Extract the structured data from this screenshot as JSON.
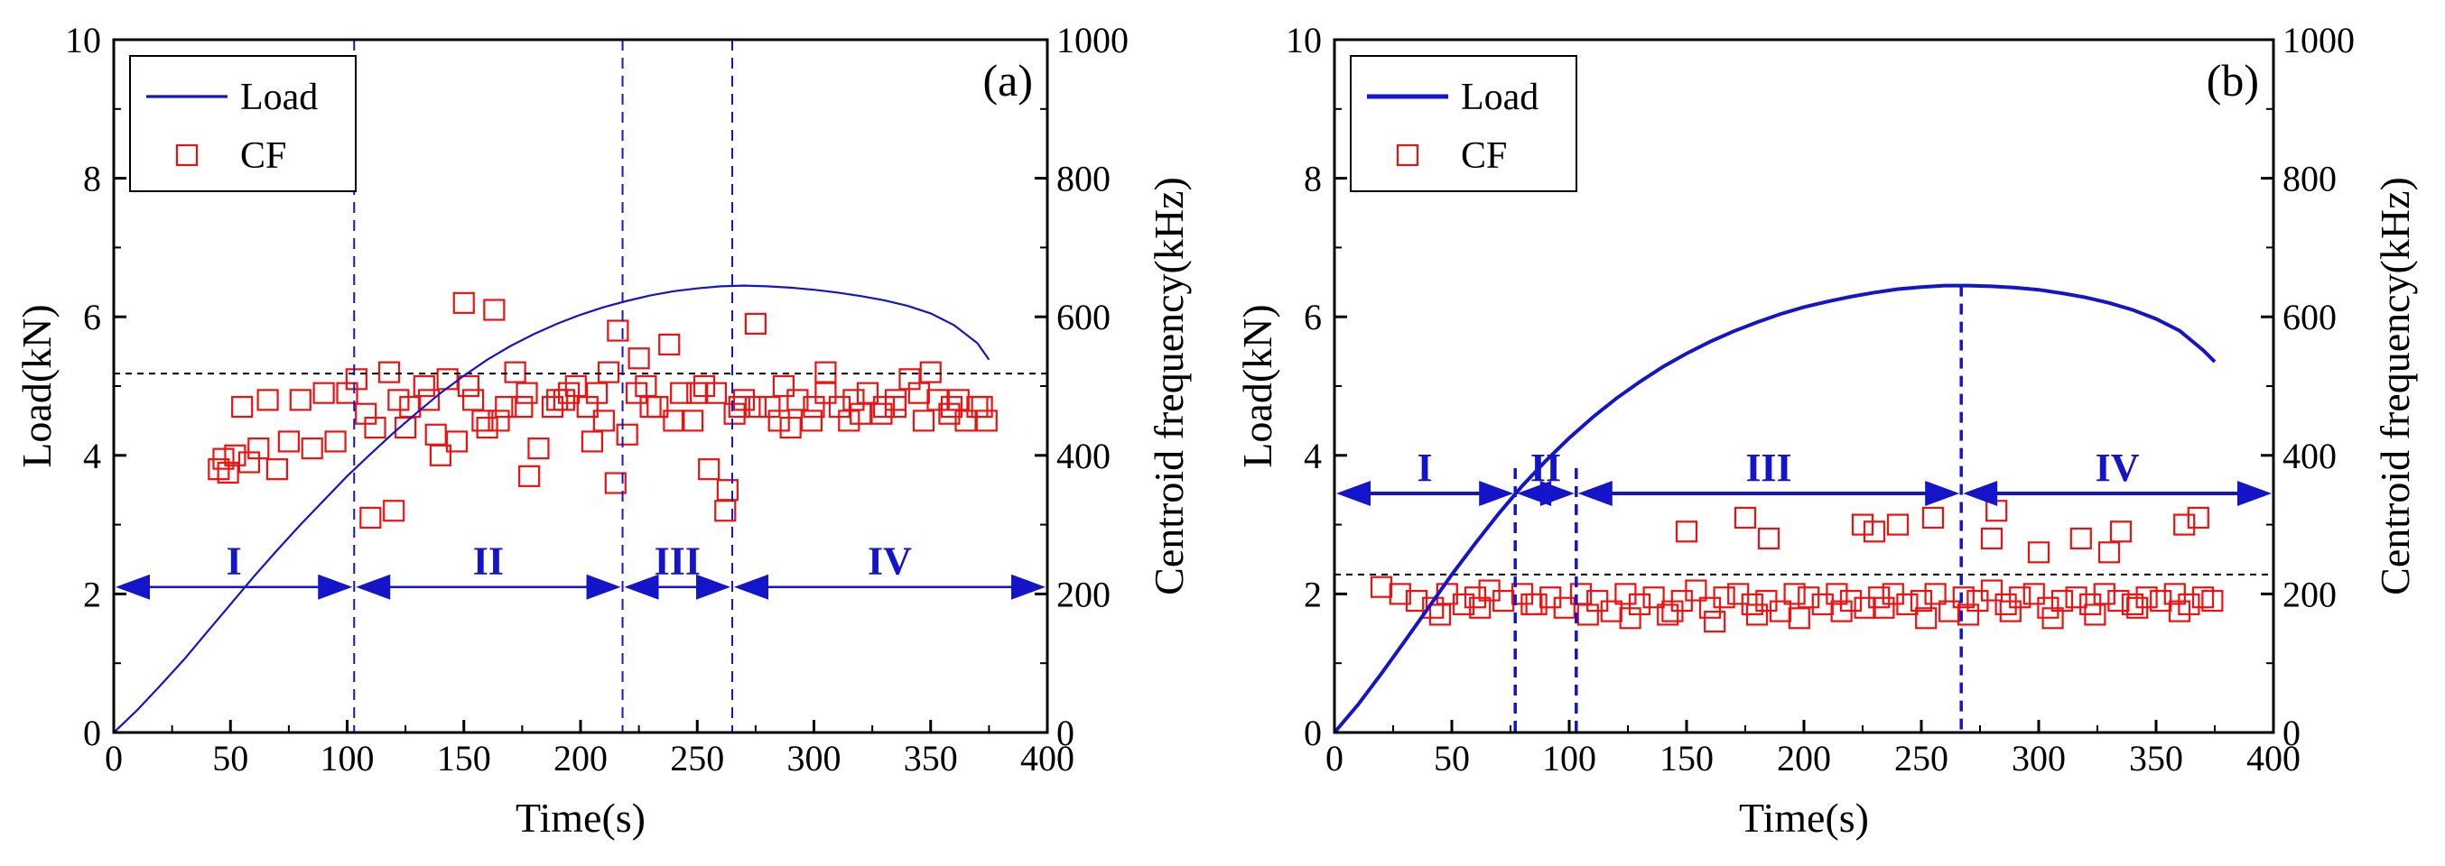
{
  "colors": {
    "load": "#1414c8",
    "cf": "#ee1111",
    "axis": "#000000",
    "threshold": "#000000"
  },
  "chart_data": [
    {
      "type": "line+scatter",
      "panel_label": "(a)",
      "xlabel": "Time(s)",
      "ylabel": "Load(kN)",
      "y2label": "Centroid frequency(kHz)",
      "xlim": [
        0,
        400
      ],
      "ylim": [
        0,
        10
      ],
      "y2lim": [
        0,
        1000
      ],
      "xticks": [
        "0",
        "50",
        "100",
        "150",
        "200",
        "250",
        "300",
        "350",
        "400"
      ],
      "yticks": [
        "0",
        "2",
        "4",
        "6",
        "8",
        "10"
      ],
      "y2ticks": [
        "0",
        "200",
        "400",
        "600",
        "800",
        "1000"
      ],
      "legend": {
        "position": "top-left",
        "entries": [
          "Load",
          "CF"
        ]
      },
      "load": {
        "name": "Load",
        "x": [
          0,
          10,
          20,
          30,
          40,
          50,
          60,
          70,
          80,
          90,
          100,
          110,
          120,
          130,
          140,
          150,
          160,
          170,
          180,
          190,
          200,
          210,
          220,
          230,
          240,
          250,
          260,
          270,
          280,
          290,
          300,
          310,
          320,
          330,
          340,
          350,
          360,
          370,
          375
        ],
        "y": [
          0,
          0.32,
          0.68,
          1.05,
          1.45,
          1.85,
          2.25,
          2.63,
          3.0,
          3.35,
          3.7,
          4.02,
          4.33,
          4.62,
          4.9,
          5.15,
          5.38,
          5.58,
          5.75,
          5.9,
          6.03,
          6.14,
          6.23,
          6.31,
          6.37,
          6.41,
          6.44,
          6.45,
          6.44,
          6.42,
          6.39,
          6.35,
          6.3,
          6.24,
          6.16,
          6.05,
          5.88,
          5.62,
          5.38
        ]
      },
      "cf_threshold_khz": 518,
      "stage_dividers_s": [
        103,
        218,
        265
      ],
      "stage_arrow_y_kn": 2.1,
      "stages": [
        {
          "label": "I",
          "from": 0,
          "to": 103
        },
        {
          "label": "II",
          "from": 103,
          "to": 218
        },
        {
          "label": "III",
          "from": 218,
          "to": 265
        },
        {
          "label": "IV",
          "from": 265,
          "to": 400
        }
      ],
      "cf_points": {
        "name": "CF",
        "x": [
          45,
          47,
          49,
          52,
          55,
          58,
          62,
          66,
          70,
          75,
          80,
          85,
          90,
          95,
          100,
          104,
          108,
          112,
          118,
          122,
          127,
          133,
          138,
          143,
          147,
          150,
          154,
          158,
          163,
          168,
          172,
          177,
          182,
          188,
          193,
          198,
          203,
          207,
          212,
          216,
          220,
          224,
          228,
          233,
          238,
          243,
          248,
          253,
          258,
          262,
          266,
          270,
          275,
          281,
          287,
          293,
          299,
          305,
          311,
          317,
          323,
          329,
          335,
          341,
          347,
          353,
          359,
          365,
          370,
          374,
          110,
          125,
          140,
          152,
          165,
          178,
          190,
          205,
          215,
          225,
          240,
          255,
          263,
          275,
          290,
          305,
          320,
          335,
          350,
          362,
          120,
          135,
          160,
          175,
          195,
          210,
          230,
          250,
          268,
          285,
          300,
          315,
          330,
          345,
          358,
          372
        ],
        "y": [
          380,
          395,
          375,
          400,
          470,
          390,
          410,
          480,
          380,
          420,
          480,
          410,
          490,
          420,
          490,
          510,
          460,
          440,
          520,
          480,
          470,
          500,
          430,
          510,
          420,
          620,
          480,
          450,
          610,
          470,
          520,
          490,
          410,
          470,
          480,
          500,
          470,
          490,
          520,
          580,
          430,
          490,
          500,
          470,
          560,
          490,
          450,
          500,
          490,
          320,
          460,
          480,
          590,
          470,
          500,
          480,
          450,
          520,
          470,
          480,
          490,
          460,
          470,
          510,
          450,
          480,
          470,
          450,
          470,
          450,
          310,
          440,
          400,
          500,
          450,
          370,
          480,
          420,
          360,
          540,
          450,
          380,
          350,
          470,
          440,
          490,
          460,
          480,
          520,
          480,
          320,
          480,
          440,
          470,
          490,
          450,
          470,
          490,
          470,
          450,
          470,
          450,
          470,
          490,
          460,
          470
        ]
      }
    },
    {
      "type": "line+scatter",
      "panel_label": "(b)",
      "xlabel": "Time(s)",
      "ylabel": "Load(kN)",
      "y2label": "Centroid frequency(kHz)",
      "xlim": [
        0,
        400
      ],
      "ylim": [
        0,
        10
      ],
      "y2lim": [
        0,
        1000
      ],
      "xticks": [
        "0",
        "50",
        "100",
        "150",
        "200",
        "250",
        "300",
        "350",
        "400"
      ],
      "yticks": [
        "0",
        "2",
        "4",
        "6",
        "8",
        "10"
      ],
      "y2ticks": [
        "0",
        "200",
        "400",
        "600",
        "800",
        "1000"
      ],
      "legend": {
        "position": "top-left",
        "entries": [
          "Load",
          "CF"
        ]
      },
      "load": {
        "name": "Load",
        "x": [
          0,
          10,
          20,
          30,
          40,
          50,
          60,
          70,
          80,
          90,
          100,
          110,
          120,
          130,
          140,
          150,
          160,
          170,
          180,
          190,
          200,
          210,
          220,
          230,
          240,
          250,
          260,
          270,
          280,
          290,
          300,
          310,
          320,
          330,
          340,
          350,
          360,
          370,
          375
        ],
        "y": [
          0,
          0.4,
          0.85,
          1.32,
          1.8,
          2.28,
          2.73,
          3.16,
          3.56,
          3.92,
          4.25,
          4.55,
          4.82,
          5.06,
          5.28,
          5.47,
          5.64,
          5.79,
          5.92,
          6.04,
          6.14,
          6.22,
          6.29,
          6.35,
          6.4,
          6.43,
          6.45,
          6.45,
          6.44,
          6.42,
          6.39,
          6.34,
          6.28,
          6.2,
          6.1,
          5.97,
          5.8,
          5.52,
          5.35
        ]
      },
      "cf_threshold_khz": 228,
      "stage_dividers_s": [
        77,
        103,
        267
      ],
      "stage_arrow_y_kn": 3.45,
      "stages": [
        {
          "label": "I",
          "from": 0,
          "to": 77
        },
        {
          "label": "II",
          "from": 77,
          "to": 103
        },
        {
          "label": "III",
          "from": 103,
          "to": 267
        },
        {
          "label": "IV",
          "from": 267,
          "to": 400
        }
      ],
      "cf_points": {
        "name": "CF",
        "x": [
          20,
          28,
          35,
          42,
          48,
          55,
          60,
          66,
          72,
          80,
          86,
          92,
          98,
          105,
          112,
          118,
          124,
          130,
          136,
          142,
          148,
          154,
          160,
          166,
          172,
          178,
          184,
          190,
          196,
          202,
          208,
          214,
          220,
          226,
          232,
          238,
          244,
          250,
          256,
          262,
          268,
          274,
          280,
          286,
          292,
          298,
          304,
          310,
          316,
          322,
          328,
          334,
          340,
          346,
          352,
          358,
          364,
          370,
          374,
          45,
          62,
          84,
          108,
          126,
          144,
          162,
          180,
          198,
          216,
          234,
          252,
          270,
          288,
          306,
          324,
          342,
          360,
          150,
          175,
          185,
          225,
          230,
          240,
          255,
          280,
          282,
          300,
          318,
          330,
          335,
          362,
          368
        ],
        "y": [
          210,
          200,
          190,
          180,
          200,
          185,
          195,
          205,
          190,
          200,
          185,
          195,
          180,
          200,
          190,
          175,
          200,
          185,
          195,
          170,
          190,
          205,
          180,
          195,
          200,
          185,
          190,
          175,
          200,
          195,
          185,
          200,
          190,
          180,
          195,
          200,
          185,
          190,
          200,
          175,
          195,
          190,
          205,
          185,
          195,
          200,
          180,
          190,
          195,
          185,
          200,
          190,
          185,
          195,
          190,
          200,
          185,
          195,
          190,
          170,
          180,
          185,
          170,
          165,
          175,
          160,
          170,
          165,
          175,
          180,
          165,
          170,
          175,
          165,
          170,
          180,
          175,
          290,
          310,
          280,
          300,
          290,
          300,
          310,
          280,
          320,
          260,
          280,
          260,
          290,
          300,
          310
        ]
      }
    }
  ]
}
